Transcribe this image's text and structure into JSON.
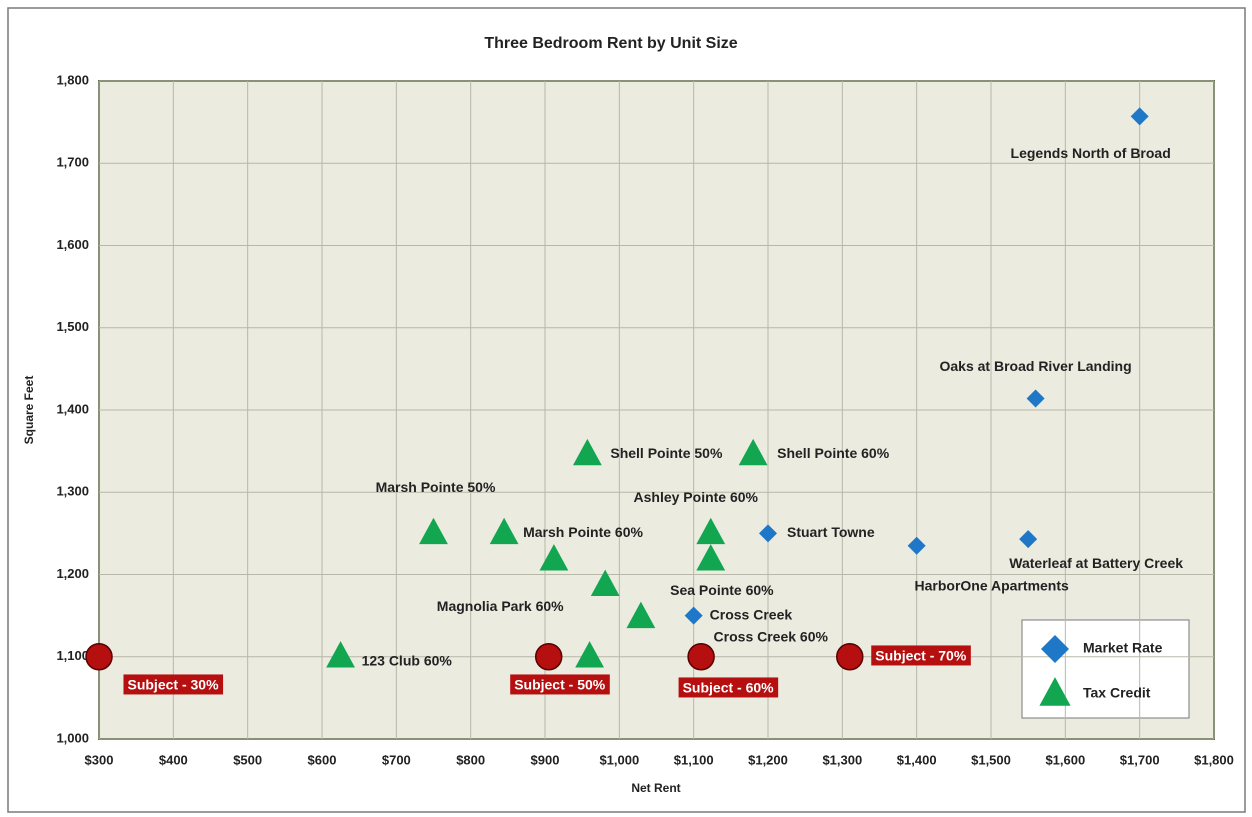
{
  "chart_data": {
    "type": "scatter",
    "title": "Three Bedroom Rent by Unit Size",
    "x_label": "Net Rent",
    "y_label": "Square Feet",
    "xlim": [
      300,
      1800
    ],
    "xticks": [
      {
        "value": 300,
        "label": "$300"
      },
      {
        "value": 400,
        "label": "$400"
      },
      {
        "value": 500,
        "label": "$500"
      },
      {
        "value": 600,
        "label": "$600"
      },
      {
        "value": 700,
        "label": "$700"
      },
      {
        "value": 800,
        "label": "$800"
      },
      {
        "value": 900,
        "label": "$900"
      },
      {
        "value": 1000,
        "label": "$1,000"
      },
      {
        "value": 1100,
        "label": "$1,100"
      },
      {
        "value": 1200,
        "label": "$1,200"
      },
      {
        "value": 1300,
        "label": "$1,300"
      },
      {
        "value": 1400,
        "label": "$1,400"
      },
      {
        "value": 1500,
        "label": "$1,500"
      },
      {
        "value": 1600,
        "label": "$1,600"
      },
      {
        "value": 1700,
        "label": "$1,700"
      },
      {
        "value": 1800,
        "label": "$1,800"
      }
    ],
    "ylim": [
      1000,
      1800
    ],
    "yticks": [
      {
        "value": 1000,
        "label": "1,000"
      },
      {
        "value": 1100,
        "label": "1,100"
      },
      {
        "value": 1200,
        "label": "1,200"
      },
      {
        "value": 1300,
        "label": "1,300"
      },
      {
        "value": 1400,
        "label": "1,400"
      },
      {
        "value": 1500,
        "label": "1,500"
      },
      {
        "value": 1600,
        "label": "1,600"
      },
      {
        "value": 1700,
        "label": "1,700"
      },
      {
        "value": 1800,
        "label": "1,800"
      }
    ],
    "grid": true,
    "legend": "lower right",
    "series": [
      {
        "name": "Market Rate",
        "marker": "diamond",
        "color": "#1f77c8",
        "x": [
          1700,
          1560,
          1200,
          1400,
          1550,
          1100
        ],
        "values": [
          1757,
          1414,
          1250,
          1235,
          1243,
          1150
        ],
        "labels": [
          "Legends North of Broad",
          "Oaks at Broad River Landing",
          "Stuart Towne",
          "HarborOne Apartments",
          "Waterleaf at Battery Creek",
          "Cross Creek"
        ]
      },
      {
        "name": "Tax Credit",
        "marker": "triangle",
        "color": "#12a650",
        "x": [
          750,
          845,
          912,
          981,
          1029,
          957,
          1180,
          1123,
          1123,
          625,
          960
        ],
        "values": [
          1250,
          1250,
          1218,
          1187,
          1148,
          1346,
          1346,
          1250,
          1218,
          1100,
          1100
        ],
        "labels": [
          "Marsh Pointe 50%",
          "Marsh Pointe 60%",
          null,
          "Magnolia Park 60%",
          "Sea Pointe 60%",
          "Shell Pointe 50%",
          "Shell Pointe 60%",
          "Ashley Pointe 60%",
          "Cross Creek 60%",
          "123 Club 60%",
          null
        ]
      },
      {
        "marker": "circle",
        "color": "#b50f0f",
        "x": [
          300,
          905,
          1110,
          1310
        ],
        "values": [
          1100,
          1100,
          1100,
          1100
        ],
        "labels": [
          "Subject - 30%",
          "Subject - 50%",
          "Subject - 60%",
          "Subject - 70%"
        ]
      }
    ]
  }
}
